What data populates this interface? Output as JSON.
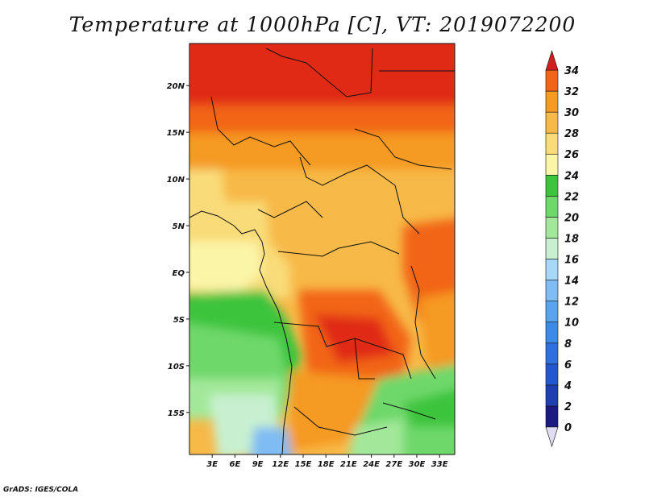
{
  "title": "Temperature at 1000hPa [C], VT: 2019072200",
  "credit": "GrADS: IGES/COLA",
  "map": {
    "lat_range": [
      -19.5,
      24.5
    ],
    "lon_range": [
      0,
      35
    ],
    "lat_ticks": [
      {
        "value": 20,
        "label": "20N"
      },
      {
        "value": 15,
        "label": "15N"
      },
      {
        "value": 10,
        "label": "10N"
      },
      {
        "value": 5,
        "label": "5N"
      },
      {
        "value": 0,
        "label": "EQ"
      },
      {
        "value": -5,
        "label": "5S"
      },
      {
        "value": -10,
        "label": "10S"
      },
      {
        "value": -15,
        "label": "15S"
      }
    ],
    "lon_ticks": [
      {
        "value": 3,
        "label": "3E"
      },
      {
        "value": 6,
        "label": "6E"
      },
      {
        "value": 9,
        "label": "9E"
      },
      {
        "value": 12,
        "label": "12E"
      },
      {
        "value": 15,
        "label": "15E"
      },
      {
        "value": 18,
        "label": "18E"
      },
      {
        "value": 21,
        "label": "21E"
      },
      {
        "value": 24,
        "label": "24E"
      },
      {
        "value": 27,
        "label": "27E"
      },
      {
        "value": 30,
        "label": "30E"
      },
      {
        "value": 33,
        "label": "33E"
      }
    ]
  },
  "colorbar": {
    "levels": [
      "0",
      "2",
      "4",
      "6",
      "8",
      "10",
      "12",
      "14",
      "16",
      "18",
      "20",
      "22",
      "24",
      "26",
      "28",
      "30",
      "32",
      "34"
    ],
    "colors": [
      "#1a1a80",
      "#1f3fb0",
      "#2257cf",
      "#2f6fdf",
      "#3d8be8",
      "#5aa3ee",
      "#7fbcf3",
      "#a8d8f7",
      "#c8f0d0",
      "#a3e89a",
      "#6ed86a",
      "#3cc43c",
      "#fbf5a8",
      "#f9dc79",
      "#f7b948",
      "#f59a23",
      "#f26518",
      "#e02a14",
      "#c8141a"
    ]
  },
  "legend_colors": {
    "cool_bottom_cap": "#e0ddf3",
    "warm_top_cap": "#d41e1e"
  }
}
